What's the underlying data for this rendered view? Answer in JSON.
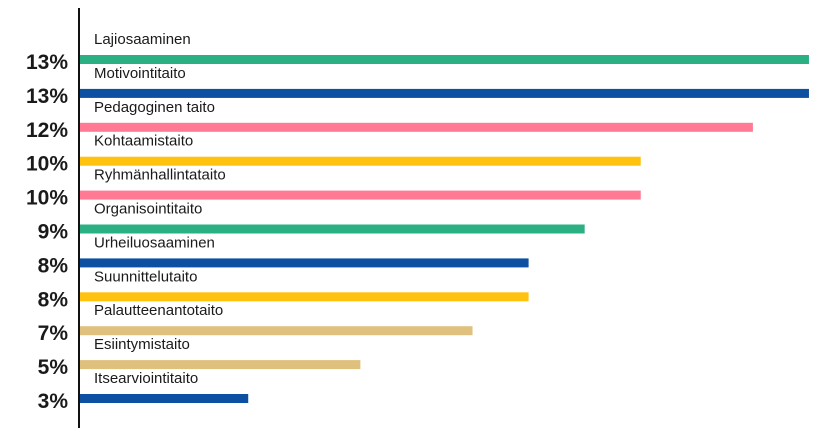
{
  "chart_data": {
    "type": "bar",
    "orientation": "horizontal",
    "categories": [
      "Lajiosaaminen",
      "Motivointitaito",
      "Pedagoginen taito",
      "Kohtaamistaito",
      "Ryhmänhallintataito",
      "Organisointitaito",
      "Urheiluosaaminen",
      "Suunnittelutaito",
      "Palautteenantotaito",
      "Esiintymistaito",
      "Itsearviointitaito"
    ],
    "values": [
      13,
      13,
      12,
      10,
      10,
      9,
      8,
      8,
      7,
      5,
      3
    ],
    "value_labels": [
      "13%",
      "13%",
      "12%",
      "10%",
      "10%",
      "9%",
      "8%",
      "8%",
      "7%",
      "5%",
      "3%"
    ],
    "bar_colors": [
      "#2bb083",
      "#0d4fa0",
      "#ff7a92",
      "#ffc20e",
      "#ff7a92",
      "#2bb083",
      "#0d4fa0",
      "#ffc20e",
      "#dfc07d",
      "#dfc07d",
      "#0d4fa0"
    ],
    "xlim": [
      0,
      13.5
    ],
    "grid": false,
    "legend": "none",
    "title": "",
    "xlabel": "",
    "ylabel": ""
  }
}
